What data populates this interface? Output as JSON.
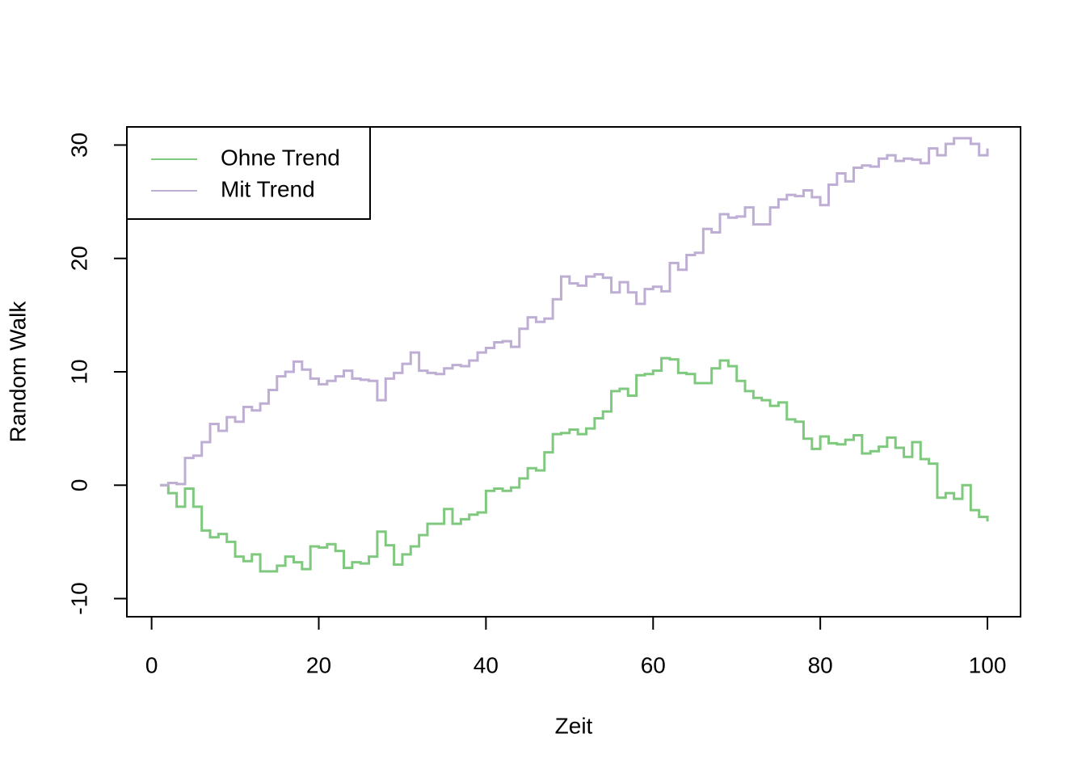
{
  "chart_data": {
    "type": "line",
    "step": true,
    "x_label": "Zeit",
    "y_label": "Random Walk",
    "x": [
      1,
      2,
      3,
      4,
      5,
      6,
      7,
      8,
      9,
      10,
      11,
      12,
      13,
      14,
      15,
      16,
      17,
      18,
      19,
      20,
      21,
      22,
      23,
      24,
      25,
      26,
      27,
      28,
      29,
      30,
      31,
      32,
      33,
      34,
      35,
      36,
      37,
      38,
      39,
      40,
      41,
      42,
      43,
      44,
      45,
      46,
      47,
      48,
      49,
      50,
      51,
      52,
      53,
      54,
      55,
      56,
      57,
      58,
      59,
      60,
      61,
      62,
      63,
      64,
      65,
      66,
      67,
      68,
      69,
      70,
      71,
      72,
      73,
      74,
      75,
      76,
      77,
      78,
      79,
      80,
      81,
      82,
      83,
      84,
      85,
      86,
      87,
      88,
      89,
      90,
      91,
      92,
      93,
      94,
      95,
      96,
      97,
      98,
      99,
      100
    ],
    "series": [
      {
        "name": "Ohne Trend",
        "color": "#7fc97f",
        "values": [
          0,
          -0.7,
          -1.9,
          -0.3,
          -1.9,
          -4.0,
          -4.6,
          -4.3,
          -5.0,
          -6.3,
          -6.7,
          -6.1,
          -7.6,
          -7.6,
          -7.1,
          -6.3,
          -6.8,
          -7.4,
          -5.4,
          -5.5,
          -5.2,
          -5.8,
          -7.3,
          -6.8,
          -6.9,
          -6.3,
          -4.1,
          -5.3,
          -7.0,
          -6.1,
          -5.4,
          -4.4,
          -3.4,
          -3.4,
          -2.1,
          -3.4,
          -3.0,
          -2.6,
          -2.4,
          -0.5,
          -0.3,
          -0.5,
          -0.2,
          0.6,
          1.5,
          1.3,
          2.9,
          4.5,
          4.6,
          4.9,
          4.5,
          5.0,
          5.9,
          6.5,
          8.3,
          8.5,
          7.9,
          9.7,
          9.8,
          10.1,
          11.2,
          11.1,
          9.9,
          9.8,
          9.0,
          9.0,
          10.3,
          11.0,
          10.5,
          9.2,
          8.3,
          7.7,
          7.5,
          7.0,
          7.3,
          5.8,
          5.6,
          4.1,
          3.2,
          4.3,
          3.7,
          3.6,
          4.0,
          4.4,
          2.8,
          3.0,
          3.4,
          4.2,
          3.3,
          2.5,
          3.8,
          2.3,
          1.9,
          -1.1,
          -0.7,
          -1.2,
          0.0,
          -2.2,
          -2.8,
          -3.2
        ]
      },
      {
        "name": "Mit Trend",
        "color": "#beaed4",
        "values": [
          0,
          0.2,
          0.1,
          2.4,
          2.6,
          3.8,
          5.4,
          4.8,
          6.0,
          5.6,
          6.9,
          6.6,
          7.2,
          8.4,
          9.6,
          10.0,
          10.9,
          10.2,
          9.4,
          8.9,
          9.2,
          9.6,
          10.1,
          9.4,
          9.3,
          9.2,
          7.5,
          9.4,
          9.9,
          10.7,
          11.7,
          10.1,
          9.9,
          9.8,
          10.3,
          10.6,
          10.5,
          11.0,
          11.7,
          12.1,
          12.6,
          12.7,
          12.2,
          13.8,
          14.8,
          14.4,
          14.7,
          16.4,
          18.4,
          17.8,
          17.6,
          18.4,
          18.6,
          18.3,
          17.0,
          17.9,
          17.0,
          16.0,
          17.3,
          17.5,
          17.1,
          19.6,
          19.0,
          20.3,
          20.5,
          22.6,
          22.3,
          23.9,
          23.6,
          23.7,
          24.5,
          23.0,
          23.0,
          24.5,
          25.2,
          25.6,
          25.5,
          26.0,
          25.4,
          24.7,
          26.5,
          27.5,
          26.8,
          28.0,
          28.2,
          28.1,
          28.8,
          29.1,
          28.6,
          28.8,
          28.7,
          28.4,
          29.7,
          29.1,
          30.1,
          30.6,
          30.6,
          30.1,
          29.1,
          29.7
        ]
      }
    ],
    "xlim": [
      -2.96,
      103.96
    ],
    "xticks": [
      0,
      20,
      40,
      60,
      80,
      100
    ],
    "ylim": [
      -11.6,
      31.6
    ],
    "yticks": [
      -10,
      0,
      10,
      20,
      30
    ],
    "legend": "top-left",
    "grid": false
  }
}
